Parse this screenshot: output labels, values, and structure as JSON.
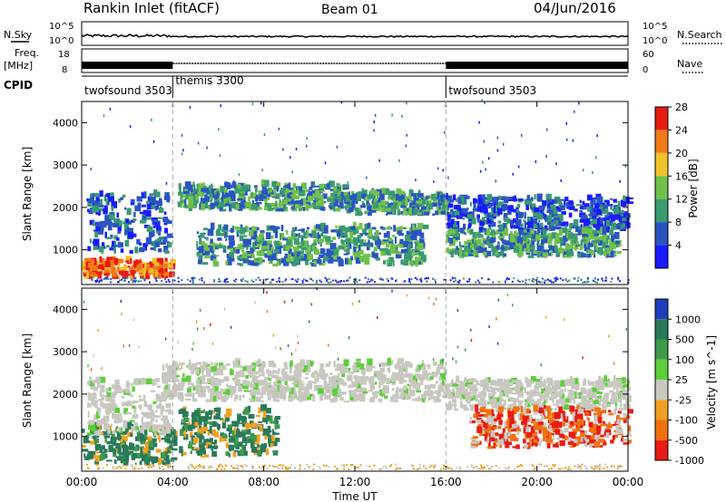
{
  "header": {
    "station": "Rankin Inlet (fitACF)",
    "beam": "Beam 01",
    "date": "04/Jun/2016"
  },
  "noise_panel": {
    "left_label": "N.Sky",
    "right_label": "N.Search",
    "left_ticks": [
      "10^5",
      "10^0"
    ],
    "right_ticks": [
      "10^5",
      "10^0"
    ]
  },
  "freq_panel": {
    "left_label_1": "Freq.",
    "left_label_2": "[MHz]",
    "right_label": "Nave",
    "left_ticks": [
      "18",
      "8"
    ],
    "right_ticks": [
      "60",
      "0"
    ]
  },
  "cpid_panel": {
    "label": "CPID",
    "segments": [
      {
        "name": "twofsound 3503",
        "start_hour": 0,
        "end_hour": 4
      },
      {
        "name": "themis 3300",
        "start_hour": 4,
        "end_hour": 16
      },
      {
        "name": "twofsound 3503",
        "start_hour": 16,
        "end_hour": 24
      }
    ]
  },
  "chart_data": [
    {
      "type": "heatmap",
      "title": "",
      "quantity": "Power",
      "xlabel": "",
      "ylabel": "Slant Range [km]",
      "xlim": [
        0,
        24
      ],
      "ylim": [
        180,
        4500
      ],
      "yticks": [
        "1000",
        "2000",
        "3000",
        "4000"
      ],
      "colorbar": {
        "label": "Power [dB]",
        "ticks": [
          "4",
          "8",
          "12",
          "16",
          "20",
          "24",
          "28"
        ],
        "colors": [
          "#1a1aff",
          "#2a55c0",
          "#3a9a70",
          "#6fc14a",
          "#f2c22a",
          "#f07a18",
          "#e81b14"
        ]
      },
      "echo_regions": [
        {
          "t": [
            0,
            4
          ],
          "range": [
            300,
            700
          ],
          "level": 27
        },
        {
          "t": [
            0.2,
            3.8
          ],
          "range": [
            900,
            2300
          ],
          "level": 11
        },
        {
          "t": [
            4.2,
            11.5
          ],
          "range": [
            1900,
            2500
          ],
          "level": 14
        },
        {
          "t": [
            5,
            15
          ],
          "range": [
            600,
            1500
          ],
          "level": 13
        },
        {
          "t": [
            11.5,
            16
          ],
          "range": [
            1800,
            2300
          ],
          "level": 12
        },
        {
          "t": [
            16,
            24
          ],
          "range": [
            1400,
            2200
          ],
          "level": 10
        },
        {
          "t": [
            16,
            23.5
          ],
          "range": [
            800,
            1400
          ],
          "level": 13
        }
      ]
    },
    {
      "type": "heatmap",
      "title": "",
      "quantity": "Velocity",
      "xlabel": "Time UT",
      "ylabel": "Slant Range [km]",
      "xlim": [
        0,
        24
      ],
      "ylim": [
        180,
        4500
      ],
      "xticks": [
        "00:00",
        "04:00",
        "08:00",
        "12:00",
        "16:00",
        "20:00",
        "00:00"
      ],
      "yticks": [
        "1000",
        "2000",
        "3000",
        "4000"
      ],
      "colorbar": {
        "label": "Velocity [m s^-1]",
        "ticks": [
          "1000",
          "500",
          "100",
          "25",
          "-25",
          "-100",
          "-500",
          "-1000"
        ],
        "colors": [
          "#1f3fbf",
          "#2a7a5a",
          "#3f9a4a",
          "#5ccf3a",
          "#c8c8c0",
          "#f0a020",
          "#f07010",
          "#e81b14"
        ]
      },
      "echo_regions": [
        {
          "t": [
            0,
            4
          ],
          "range": [
            300,
            1200
          ],
          "level": "100-500"
        },
        {
          "t": [
            0.2,
            3.8
          ],
          "range": [
            1000,
            2300
          ],
          "level": "-25-25"
        },
        {
          "t": [
            4.2,
            8.5
          ],
          "range": [
            500,
            1600
          ],
          "level": "100-500"
        },
        {
          "t": [
            3.5,
            16
          ],
          "range": [
            1800,
            2700
          ],
          "level": "-25-25"
        },
        {
          "t": [
            16,
            24
          ],
          "range": [
            1600,
            2300
          ],
          "level": "-25-25"
        },
        {
          "t": [
            17,
            24
          ],
          "range": [
            700,
            1600
          ],
          "level": "-100--1000"
        }
      ]
    }
  ]
}
